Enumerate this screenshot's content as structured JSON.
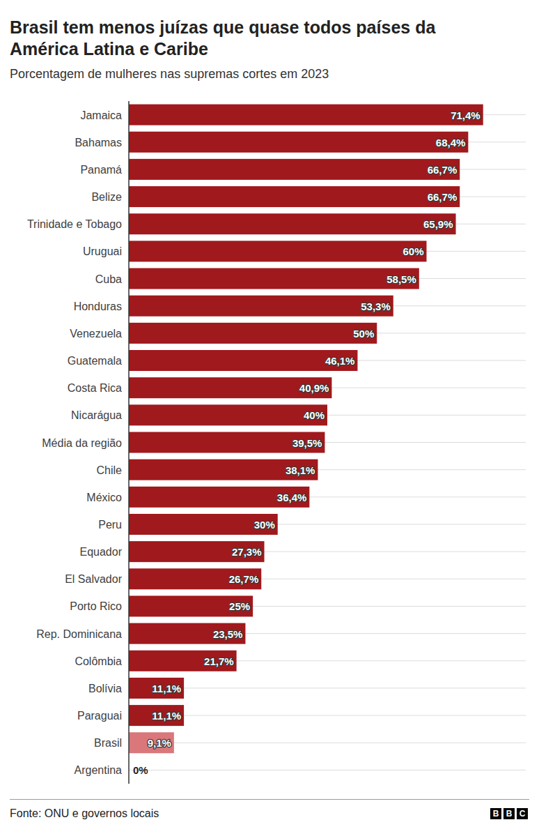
{
  "chart_data": {
    "type": "bar",
    "orientation": "horizontal",
    "title": "Brasil tem menos juízas que quase todos países da América Latina e Caribe",
    "subtitle": "Porcentagem de mulheres nas supremas cortes em 2023",
    "categories": [
      "Jamaica",
      "Bahamas",
      "Panamá",
      "Belize",
      "Trinidade e Tobago",
      "Uruguai",
      "Cuba",
      "Honduras",
      "Venezuela",
      "Guatemala",
      "Costa Rica",
      "Nicarágua",
      "Média da região",
      "Chile",
      "México",
      "Peru",
      "Equador",
      "El Salvador",
      "Porto Rico",
      "Rep. Dominicana",
      "Colômbia",
      "Bolívia",
      "Paraguai",
      "Brasil",
      "Argentina"
    ],
    "values": [
      71.4,
      68.4,
      66.7,
      66.7,
      65.9,
      60,
      58.5,
      53.3,
      50,
      46.1,
      40.9,
      40,
      39.5,
      38.1,
      36.4,
      30,
      27.3,
      26.7,
      25,
      23.5,
      21.7,
      11.1,
      11.1,
      9.1,
      0
    ],
    "value_labels": [
      "71,4%",
      "68,4%",
      "66,7%",
      "66,7%",
      "65,9%",
      "60%",
      "58,5%",
      "53,3%",
      "50%",
      "46,1%",
      "40,9%",
      "40%",
      "39,5%",
      "38,1%",
      "36,4%",
      "30%",
      "27,3%",
      "26,7%",
      "25%",
      "23,5%",
      "21,7%",
      "11,1%",
      "11,1%",
      "9,1%",
      "0%"
    ],
    "colors": [
      "#a0191d",
      "#a0191d",
      "#a0191d",
      "#a0191d",
      "#a0191d",
      "#a0191d",
      "#a0191d",
      "#a0191d",
      "#a0191d",
      "#a0191d",
      "#a0191d",
      "#a0191d",
      "#a0191d",
      "#a0191d",
      "#a0191d",
      "#a0191d",
      "#a0191d",
      "#a0191d",
      "#a0191d",
      "#a0191d",
      "#a0191d",
      "#a0191d",
      "#a0191d",
      "#d9777b",
      "#a0191d"
    ],
    "xlim": [
      0,
      80
    ],
    "grid": true,
    "data_labels": true,
    "tick_labels": "y",
    "source": "Fonte: ONU e governos locais",
    "logo": "BBC"
  }
}
